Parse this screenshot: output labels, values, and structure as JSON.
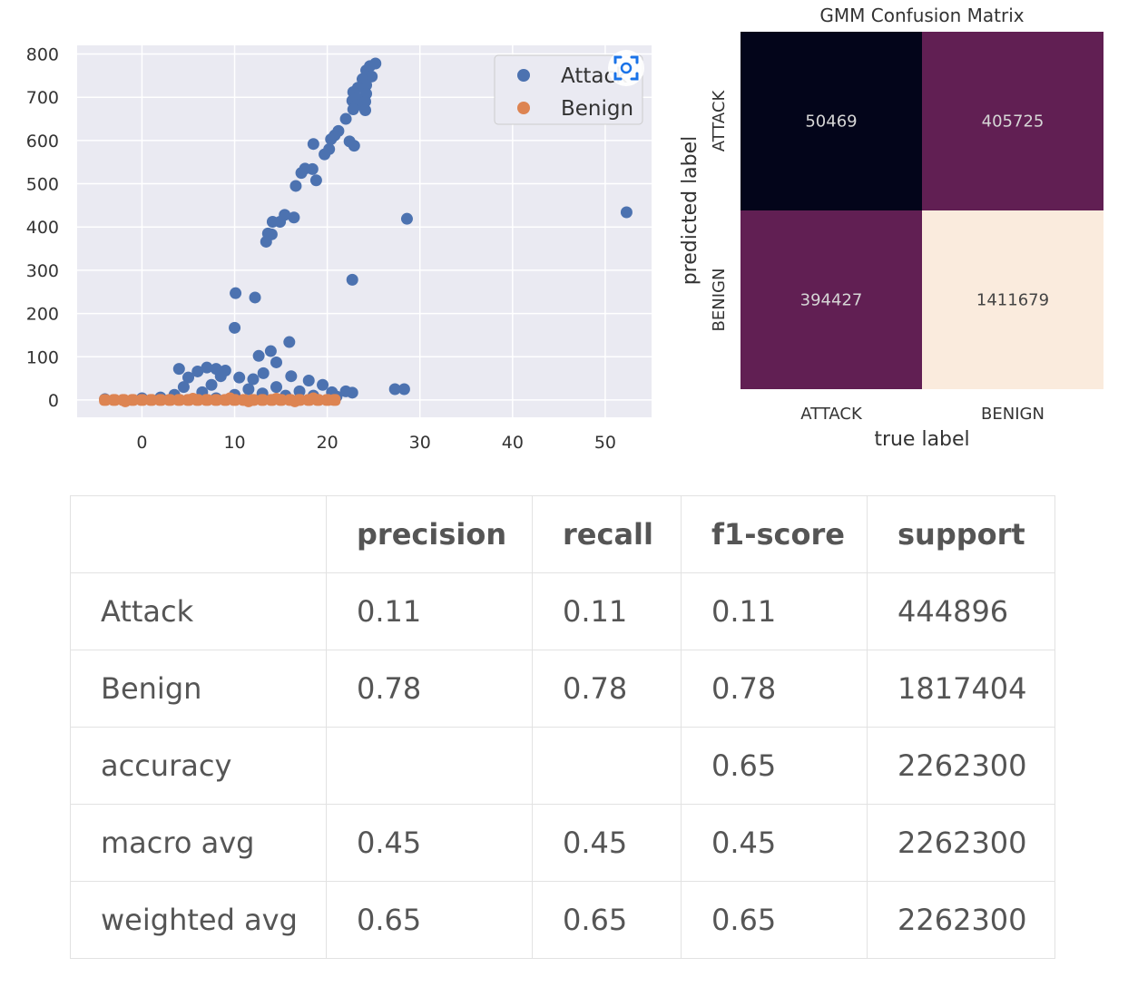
{
  "chart_data": [
    {
      "type": "scatter",
      "title": "",
      "xlabel": "",
      "ylabel": "",
      "xlim": [
        -7,
        55
      ],
      "ylim": [
        -40,
        820
      ],
      "x_ticks": [
        0,
        10,
        20,
        30,
        40,
        50
      ],
      "y_ticks": [
        0,
        100,
        200,
        300,
        400,
        500,
        600,
        700,
        800
      ],
      "grid": true,
      "background": "#eaeaf2",
      "legend_position": "top-right",
      "series": [
        {
          "name": "Attack",
          "color": "#4c72b0",
          "points": [
            [
              25.2,
              778
            ],
            [
              24.6,
              772
            ],
            [
              24.2,
              762
            ],
            [
              24.8,
              748
            ],
            [
              23.8,
              742
            ],
            [
              24.2,
              728
            ],
            [
              23.3,
              722
            ],
            [
              22.8,
              712
            ],
            [
              24.2,
              708
            ],
            [
              23.2,
              698
            ],
            [
              22.7,
              692
            ],
            [
              24.1,
              690
            ],
            [
              23.2,
              682
            ],
            [
              22.8,
              672
            ],
            [
              24.1,
              670
            ],
            [
              22.0,
              650
            ],
            [
              21.2,
              622
            ],
            [
              20.8,
              612
            ],
            [
              22.4,
              598
            ],
            [
              20.4,
              603
            ],
            [
              22.9,
              588
            ],
            [
              18.5,
              592
            ],
            [
              20.2,
              580
            ],
            [
              19.7,
              568
            ],
            [
              17.6,
              535
            ],
            [
              18.4,
              534
            ],
            [
              17.2,
              525
            ],
            [
              18.8,
              508
            ],
            [
              16.6,
              495
            ],
            [
              28.6,
              419
            ],
            [
              52.3,
              434
            ],
            [
              15.4,
              428
            ],
            [
              16.4,
              422
            ],
            [
              14.1,
              412
            ],
            [
              14.9,
              412
            ],
            [
              13.6,
              385
            ],
            [
              14.0,
              383
            ],
            [
              13.4,
              366
            ],
            [
              22.7,
              278
            ],
            [
              10.1,
              247
            ],
            [
              12.2,
              237
            ],
            [
              10.0,
              167
            ],
            [
              15.9,
              134
            ],
            [
              13.9,
              113
            ],
            [
              12.6,
              102
            ],
            [
              14.5,
              87
            ],
            [
              4.0,
              72
            ],
            [
              7.0,
              75
            ],
            [
              8.0,
              72
            ],
            [
              9.0,
              68
            ],
            [
              6.0,
              66
            ],
            [
              13.1,
              62
            ],
            [
              5.0,
              52
            ],
            [
              8.5,
              55
            ],
            [
              10.5,
              52
            ],
            [
              12.0,
              48
            ],
            [
              16.1,
              55
            ],
            [
              18.0,
              45
            ],
            [
              19.5,
              35
            ],
            [
              4.5,
              30
            ],
            [
              7.5,
              35
            ],
            [
              11.5,
              25
            ],
            [
              14.5,
              30
            ],
            [
              17.0,
              20
            ],
            [
              20.5,
              18
            ],
            [
              22.0,
              20
            ],
            [
              22.7,
              17
            ],
            [
              27.3,
              25
            ],
            [
              28.3,
              25
            ],
            [
              3.5,
              12
            ],
            [
              6.5,
              18
            ],
            [
              10.0,
              12
            ],
            [
              13.0,
              15
            ],
            [
              15.5,
              10
            ],
            [
              18.5,
              10
            ],
            [
              21.0,
              8
            ],
            [
              -4,
              2
            ],
            [
              0,
              4
            ],
            [
              2,
              6
            ],
            [
              8,
              4
            ]
          ]
        },
        {
          "name": "Benign",
          "color": "#dd8452",
          "points": [
            [
              -4,
              0
            ],
            [
              -3,
              0
            ],
            [
              -2,
              0
            ],
            [
              -1,
              0
            ],
            [
              0,
              0
            ],
            [
              1,
              0
            ],
            [
              2,
              0
            ],
            [
              3,
              0
            ],
            [
              4,
              0
            ],
            [
              5,
              0
            ],
            [
              6,
              0
            ],
            [
              7,
              0
            ],
            [
              8,
              0
            ],
            [
              9,
              0
            ],
            [
              10,
              0
            ],
            [
              11,
              0
            ],
            [
              12,
              0
            ],
            [
              13,
              0
            ],
            [
              14,
              0
            ],
            [
              15,
              0
            ],
            [
              16,
              0
            ],
            [
              17,
              0
            ],
            [
              18,
              0
            ],
            [
              19,
              0
            ],
            [
              20,
              0
            ],
            [
              20.8,
              0
            ],
            [
              -1.8,
              -3
            ],
            [
              5.5,
              3
            ],
            [
              9.5,
              4
            ],
            [
              14.5,
              3
            ],
            [
              18.5,
              4
            ],
            [
              11.5,
              -3
            ],
            [
              16.5,
              -3
            ]
          ]
        }
      ]
    },
    {
      "type": "heatmap",
      "title": "GMM Confusion Matrix",
      "xlabel": "true label",
      "ylabel": "predicted label",
      "x_categories": [
        "ATTACK",
        "BENIGN"
      ],
      "y_categories": [
        "ATTACK",
        "BENIGN"
      ],
      "values": [
        [
          50469,
          405725
        ],
        [
          394427,
          1411679
        ]
      ],
      "colors": [
        [
          "#03051a",
          "#611f53"
        ],
        [
          "#611f53",
          "#faebdd"
        ]
      ],
      "text_colors": [
        [
          "#d6d6d6",
          "#d6d6d6"
        ],
        [
          "#d6d6d6",
          "#444444"
        ]
      ]
    },
    {
      "type": "table",
      "columns": [
        "",
        "precision",
        "recall",
        "f1-score",
        "support"
      ],
      "rows": [
        [
          "Attack",
          "0.11",
          "0.11",
          "0.11",
          "444896"
        ],
        [
          "Benign",
          "0.78",
          "0.78",
          "0.78",
          "1817404"
        ],
        [
          "accuracy",
          "",
          "",
          "0.65",
          "2262300"
        ],
        [
          "macro avg",
          "0.45",
          "0.45",
          "0.45",
          "2262300"
        ],
        [
          "weighted avg",
          "0.65",
          "0.65",
          "0.65",
          "2262300"
        ]
      ]
    }
  ],
  "overlay": {
    "icon": "image-search-icon",
    "color": "#1a73e8"
  }
}
